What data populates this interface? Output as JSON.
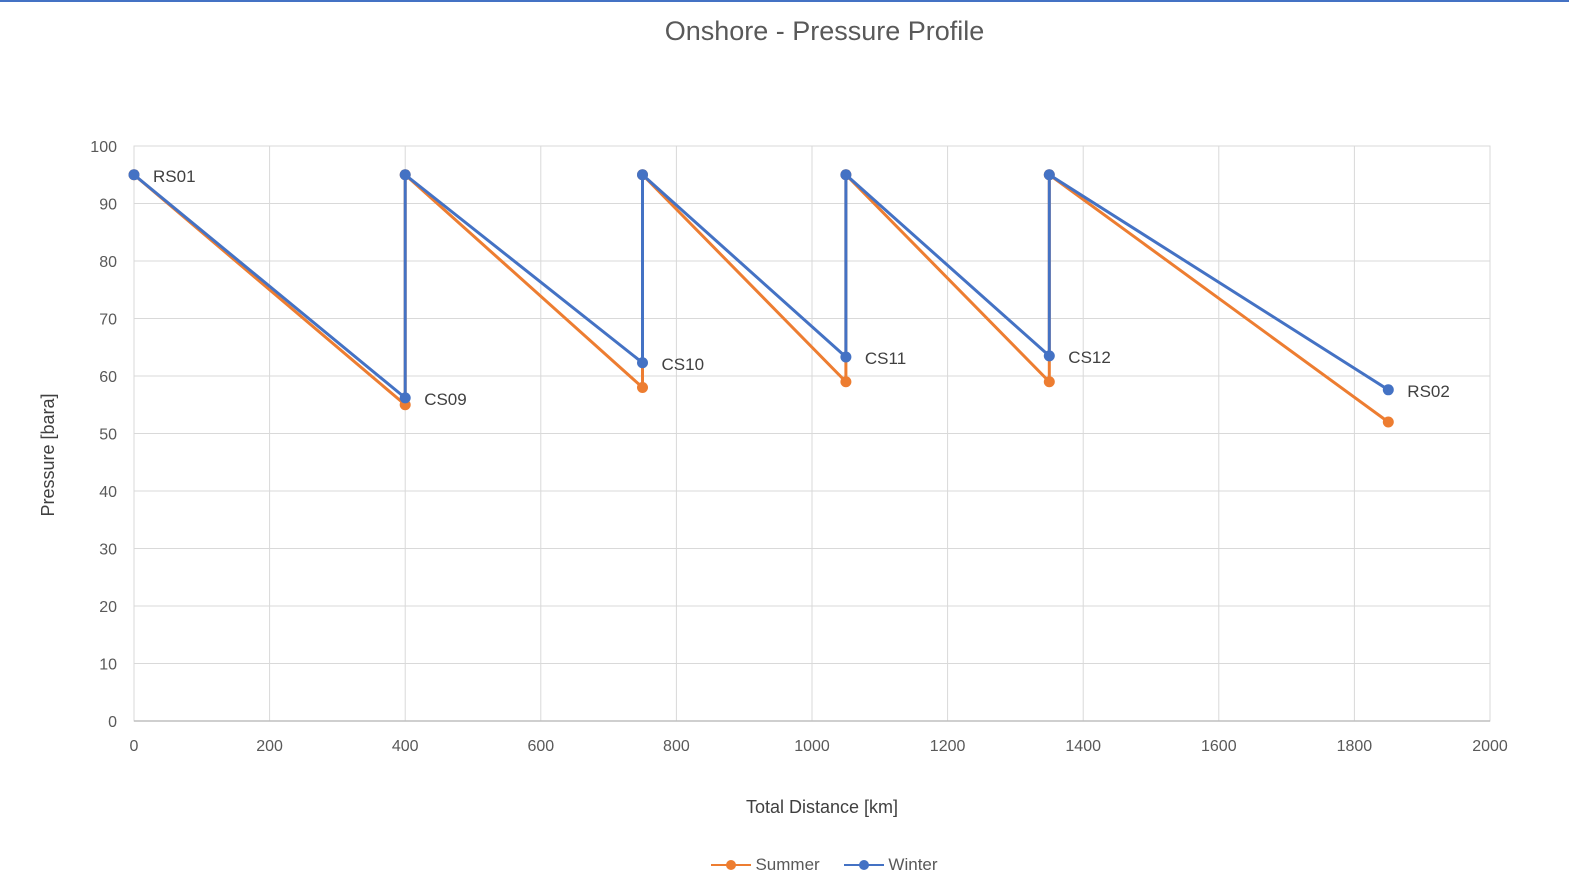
{
  "chart_data": {
    "type": "line",
    "title": "Onshore - Pressure Profile",
    "xlabel": "Total Distance [km]",
    "ylabel": "Pressure [bara]",
    "xlim": [
      0,
      2000
    ],
    "ylim": [
      0,
      100
    ],
    "xticks": [
      0,
      200,
      400,
      600,
      800,
      1000,
      1200,
      1400,
      1600,
      1800,
      2000
    ],
    "yticks": [
      0,
      10,
      20,
      30,
      40,
      50,
      60,
      70,
      80,
      90,
      100
    ],
    "grid": true,
    "legend_position": "bottom",
    "series": [
      {
        "name": "Summer",
        "color": "#ed7d31",
        "points": [
          [
            0,
            95
          ],
          [
            400,
            55
          ],
          [
            400,
            95
          ],
          [
            750,
            58
          ],
          [
            750,
            95
          ],
          [
            1050,
            59
          ],
          [
            1050,
            95
          ],
          [
            1350,
            59
          ],
          [
            1350,
            95
          ],
          [
            1850,
            52
          ]
        ]
      },
      {
        "name": "Winter",
        "color": "#4472c4",
        "points": [
          [
            0,
            95
          ],
          [
            400,
            56.2
          ],
          [
            400,
            95
          ],
          [
            750,
            62.3
          ],
          [
            750,
            95
          ],
          [
            1050,
            63.3
          ],
          [
            1050,
            95
          ],
          [
            1350,
            63.5
          ],
          [
            1350,
            95
          ],
          [
            1850,
            57.6
          ]
        ]
      }
    ],
    "annotations": [
      {
        "text": "RS01",
        "x": 0,
        "y": 95
      },
      {
        "text": "CS09",
        "x": 400,
        "y": 56.2
      },
      {
        "text": "CS10",
        "x": 750,
        "y": 62.3
      },
      {
        "text": "CS11",
        "x": 1050,
        "y": 63.3
      },
      {
        "text": "CS12",
        "x": 1350,
        "y": 63.5
      },
      {
        "text": "RS02",
        "x": 1850,
        "y": 57.6
      }
    ]
  }
}
